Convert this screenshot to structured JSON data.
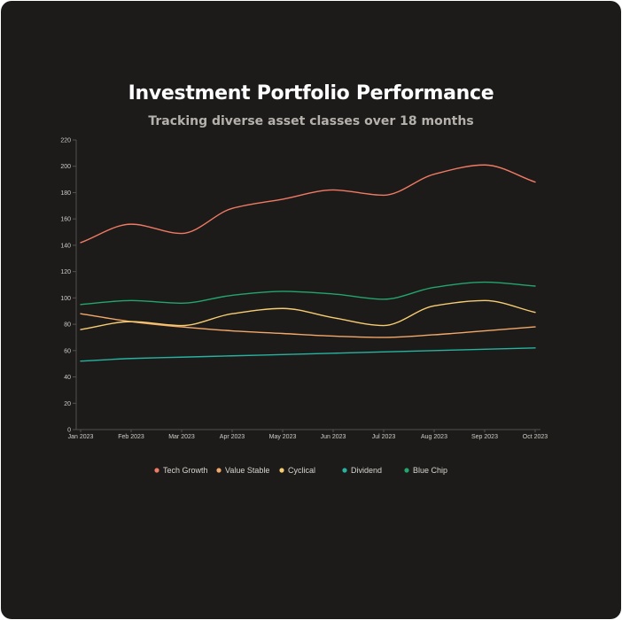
{
  "title": "Investment Portfolio Performance",
  "subtitle": "Tracking diverse asset classes over 18 months",
  "colors": {
    "background": "#1c1b1a",
    "axis": "#55524e",
    "tech_growth": "#f07a63",
    "value_stable": "#f2a868",
    "cyclical": "#f7cd72",
    "dividend": "#27b3a0",
    "blue_chip": "#23a56e"
  },
  "chart_data": {
    "type": "line",
    "title": "",
    "xlabel": "",
    "ylabel": "",
    "x": [
      "Jan 2023",
      "Feb 2023",
      "Mar 2023",
      "Apr 2023",
      "May 2023",
      "Jun 2023",
      "Jul 2023",
      "Aug 2023",
      "Sep 2023",
      "Oct 2023"
    ],
    "ylim": [
      0,
      220
    ],
    "yticks": [
      0,
      20,
      40,
      60,
      80,
      100,
      120,
      140,
      160,
      180,
      200,
      220
    ],
    "grid": false,
    "legend_position": "bottom",
    "series": [
      {
        "name": "Tech Growth",
        "color": "#f07a63",
        "values": [
          142,
          156,
          149,
          168,
          175,
          182,
          178,
          194,
          201,
          188
        ]
      },
      {
        "name": "Value Stable",
        "color": "#f2a868",
        "values": [
          88,
          82,
          78,
          75,
          73,
          71,
          70,
          72,
          75,
          78
        ]
      },
      {
        "name": "Cyclical",
        "color": "#f7cd72",
        "values": [
          76,
          82,
          79,
          88,
          92,
          85,
          79,
          94,
          98,
          89
        ]
      },
      {
        "name": "Dividend",
        "color": "#27b3a0",
        "values": [
          52,
          54,
          55,
          56,
          57,
          58,
          59,
          60,
          61,
          62
        ]
      },
      {
        "name": "Blue Chip",
        "color": "#23a56e",
        "values": [
          95,
          98,
          96,
          102,
          105,
          103,
          99,
          108,
          112,
          109
        ]
      }
    ]
  }
}
